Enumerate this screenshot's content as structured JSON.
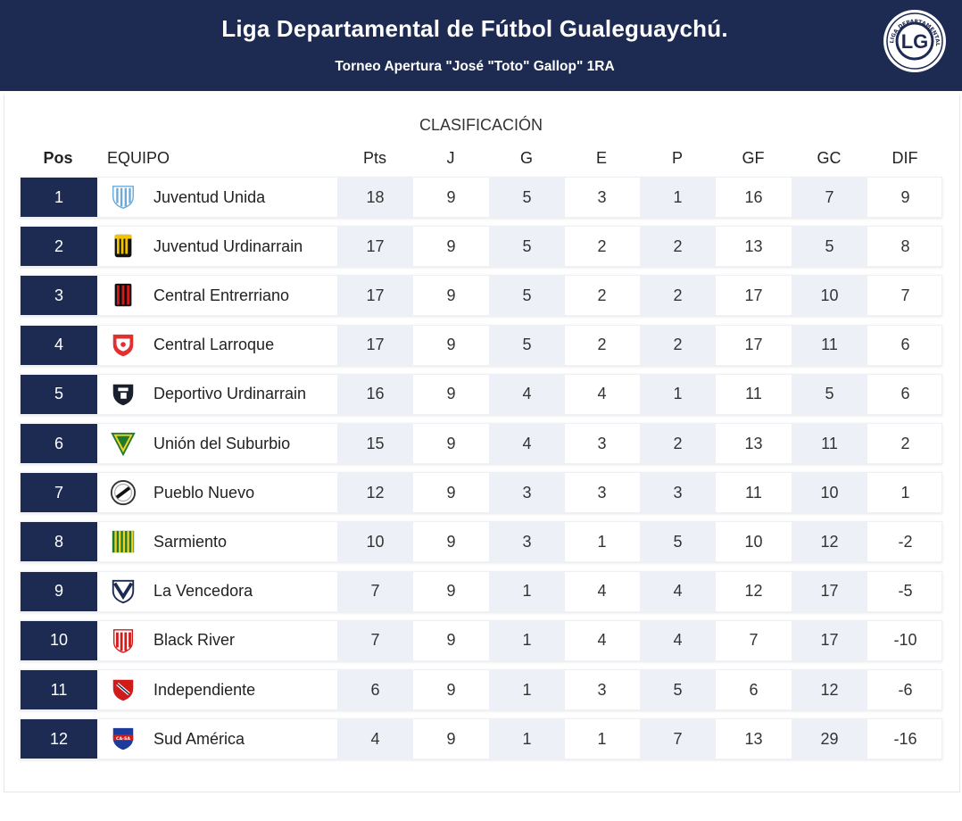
{
  "header": {
    "title": "Liga Departamental de Fútbol Gualeguaychú.",
    "subtitle": "Torneo Apertura \"José \"Toto\" Gallop\" 1RA",
    "logo_text": "LIGA DEPARTAMENTAL DE FÚTBOL GUALEGUAYCHÚ",
    "logo_monogram": "LG"
  },
  "table": {
    "title": "CLASIFICACIÓN",
    "columns": [
      "Pos",
      "EQUIPO",
      "Pts",
      "J",
      "G",
      "E",
      "P",
      "GF",
      "GC",
      "DIF"
    ],
    "rows": [
      {
        "pos": "1",
        "team": "Juventud Unida",
        "crest": "juventud-unida-crest",
        "pts": "18",
        "j": "9",
        "g": "5",
        "e": "3",
        "p": "1",
        "gf": "16",
        "gc": "7",
        "dif": "9"
      },
      {
        "pos": "2",
        "team": "Juventud Urdinarrain",
        "crest": "juventud-urdinarrain-crest",
        "pts": "17",
        "j": "9",
        "g": "5",
        "e": "2",
        "p": "2",
        "gf": "13",
        "gc": "5",
        "dif": "8"
      },
      {
        "pos": "3",
        "team": "Central Entrerriano",
        "crest": "central-entrerriano-crest",
        "pts": "17",
        "j": "9",
        "g": "5",
        "e": "2",
        "p": "2",
        "gf": "17",
        "gc": "10",
        "dif": "7"
      },
      {
        "pos": "4",
        "team": "Central Larroque",
        "crest": "central-larroque-crest",
        "pts": "17",
        "j": "9",
        "g": "5",
        "e": "2",
        "p": "2",
        "gf": "17",
        "gc": "11",
        "dif": "6"
      },
      {
        "pos": "5",
        "team": "Deportivo Urdinarrain",
        "crest": "deportivo-urdinarrain-crest",
        "pts": "16",
        "j": "9",
        "g": "4",
        "e": "4",
        "p": "1",
        "gf": "11",
        "gc": "5",
        "dif": "6"
      },
      {
        "pos": "6",
        "team": "Unión del Suburbio",
        "crest": "union-del-suburbio-crest",
        "pts": "15",
        "j": "9",
        "g": "4",
        "e": "3",
        "p": "2",
        "gf": "13",
        "gc": "11",
        "dif": "2"
      },
      {
        "pos": "7",
        "team": "Pueblo Nuevo",
        "crest": "pueblo-nuevo-crest",
        "pts": "12",
        "j": "9",
        "g": "3",
        "e": "3",
        "p": "3",
        "gf": "11",
        "gc": "10",
        "dif": "1"
      },
      {
        "pos": "8",
        "team": "Sarmiento",
        "crest": "sarmiento-crest",
        "pts": "10",
        "j": "9",
        "g": "3",
        "e": "1",
        "p": "5",
        "gf": "10",
        "gc": "12",
        "dif": "-2"
      },
      {
        "pos": "9",
        "team": "La Vencedora",
        "crest": "la-vencedora-crest",
        "pts": "7",
        "j": "9",
        "g": "1",
        "e": "4",
        "p": "4",
        "gf": "12",
        "gc": "17",
        "dif": "-5"
      },
      {
        "pos": "10",
        "team": "Black River",
        "crest": "black-river-crest",
        "pts": "7",
        "j": "9",
        "g": "1",
        "e": "4",
        "p": "4",
        "gf": "7",
        "gc": "17",
        "dif": "-10"
      },
      {
        "pos": "11",
        "team": "Independiente",
        "crest": "independiente-crest",
        "pts": "6",
        "j": "9",
        "g": "1",
        "e": "3",
        "p": "5",
        "gf": "6",
        "gc": "12",
        "dif": "-6"
      },
      {
        "pos": "12",
        "team": "Sud América",
        "crest": "sud-america-crest",
        "pts": "4",
        "j": "9",
        "g": "1",
        "e": "1",
        "p": "7",
        "gf": "13",
        "gc": "29",
        "dif": "-16"
      }
    ]
  },
  "colors": {
    "navy": "#1d2b52",
    "shade": "#edf1f7"
  }
}
